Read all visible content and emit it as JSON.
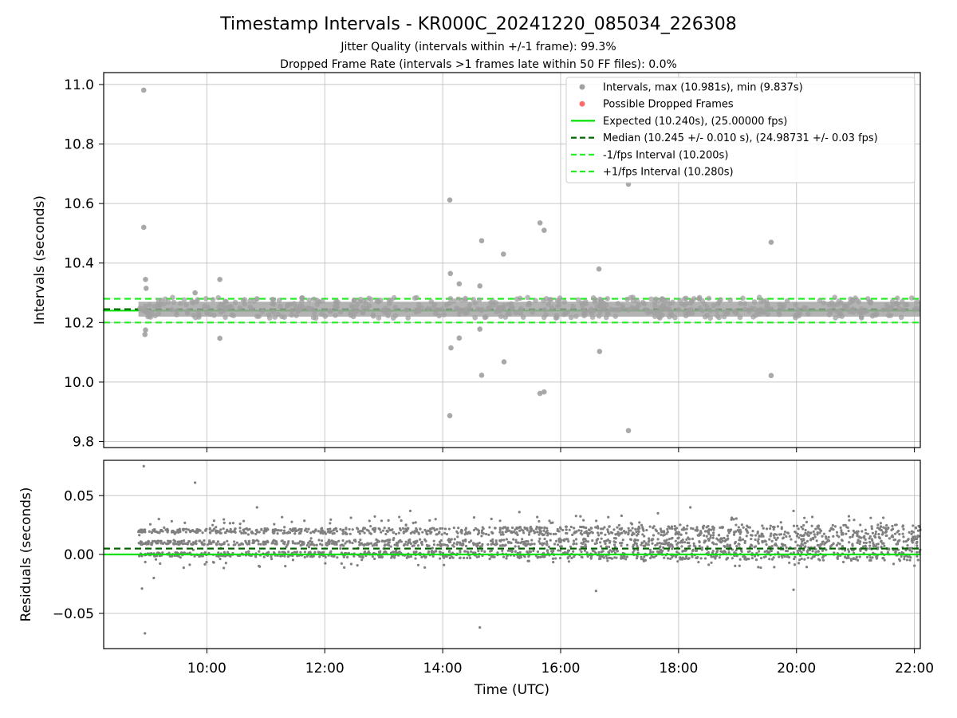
{
  "chart_data": [
    {
      "type": "scatter",
      "panel": "intervals",
      "title": "Timestamp Intervals - KR000C_20241220_085034_226308",
      "subtitle_lines": [
        "Jitter Quality (intervals within +/-1 frame): 99.3%",
        "Dropped Frame Rate (intervals >1 frames late within 50 FF files): 0.0%"
      ],
      "ylabel": "Intervals (seconds)",
      "xlim_hours": [
        8.25,
        22.1
      ],
      "ylim": [
        9.78,
        11.04
      ],
      "yticks": [
        9.8,
        10.0,
        10.2,
        10.4,
        10.6,
        10.8,
        11.0
      ],
      "ytick_labels": [
        "9.8",
        "10.0",
        "10.2",
        "10.4",
        "10.6",
        "10.8",
        "11.0"
      ],
      "grid": true,
      "legend_position": "upper-right",
      "legend": [
        "Intervals, max (10.981s), min (9.837s)",
        "Possible Dropped Frames",
        "Expected (10.240s), (25.00000 fps)",
        "Median (10.245 +/- 0.010 s), (24.98731 +/- 0.03 fps)",
        "-1/fps Interval (10.200s)",
        "+1/fps Interval (10.280s)"
      ],
      "reference_lines": {
        "expected": 10.24,
        "median": 10.245,
        "minus_one_frame": 10.2,
        "plus_one_frame": 10.28
      },
      "band": {
        "x_start": 8.84,
        "x_end": 22.1,
        "low": 10.22,
        "high": 10.27
      },
      "outliers": [
        {
          "x": 8.93,
          "y": 10.981
        },
        {
          "x": 8.93,
          "y": 10.52
        },
        {
          "x": 8.96,
          "y": 10.345
        },
        {
          "x": 8.97,
          "y": 10.315
        },
        {
          "x": 8.96,
          "y": 10.175
        },
        {
          "x": 8.95,
          "y": 10.16
        },
        {
          "x": 9.8,
          "y": 10.3
        },
        {
          "x": 10.22,
          "y": 10.345
        },
        {
          "x": 10.22,
          "y": 10.147
        },
        {
          "x": 14.12,
          "y": 10.612
        },
        {
          "x": 14.13,
          "y": 10.365
        },
        {
          "x": 14.28,
          "y": 10.33
        },
        {
          "x": 14.63,
          "y": 10.323
        },
        {
          "x": 14.66,
          "y": 10.475
        },
        {
          "x": 15.03,
          "y": 10.43
        },
        {
          "x": 15.65,
          "y": 10.535
        },
        {
          "x": 15.72,
          "y": 10.51
        },
        {
          "x": 16.65,
          "y": 10.38
        },
        {
          "x": 17.15,
          "y": 10.665
        },
        {
          "x": 19.57,
          "y": 10.47
        },
        {
          "x": 14.14,
          "y": 10.115
        },
        {
          "x": 14.28,
          "y": 10.148
        },
        {
          "x": 14.63,
          "y": 10.178
        },
        {
          "x": 14.66,
          "y": 10.023
        },
        {
          "x": 15.04,
          "y": 10.068
        },
        {
          "x": 15.65,
          "y": 9.962
        },
        {
          "x": 15.72,
          "y": 9.967
        },
        {
          "x": 16.66,
          "y": 10.103
        },
        {
          "x": 19.57,
          "y": 10.022
        },
        {
          "x": 14.12,
          "y": 9.887
        },
        {
          "x": 17.15,
          "y": 9.837
        },
        {
          "x": 18.35,
          "y": 10.28
        },
        {
          "x": 10.85,
          "y": 10.28
        },
        {
          "x": 12.5,
          "y": 10.275
        }
      ],
      "dropped_frames": []
    },
    {
      "type": "scatter",
      "panel": "residuals",
      "ylabel": "Residuals (seconds)",
      "xlabel": "Time (UTC)",
      "xlim_hours": [
        8.25,
        22.1
      ],
      "ylim": [
        -0.08,
        0.08
      ],
      "yticks": [
        -0.05,
        0.0,
        0.05
      ],
      "ytick_labels": [
        "−0.05",
        "0.00",
        "0.05"
      ],
      "xticks_hours": [
        10,
        12,
        14,
        16,
        18,
        20,
        22
      ],
      "xtick_labels": [
        "10:00",
        "12:00",
        "14:00",
        "16:00",
        "18:00",
        "20:00",
        "22:00"
      ],
      "grid": true,
      "reference_lines": {
        "zero": 0.0,
        "median_offset": 0.005
      },
      "clusters": [
        0.0,
        0.01,
        0.02
      ],
      "outliers": [
        {
          "x": 8.93,
          "y": 0.075
        },
        {
          "x": 8.95,
          "y": -0.067
        },
        {
          "x": 9.8,
          "y": 0.061
        },
        {
          "x": 8.9,
          "y": -0.029
        },
        {
          "x": 14.63,
          "y": -0.062
        },
        {
          "x": 16.6,
          "y": -0.031
        },
        {
          "x": 19.95,
          "y": -0.03
        },
        {
          "x": 18.2,
          "y": 0.04
        },
        {
          "x": 17.65,
          "y": 0.035
        },
        {
          "x": 19.95,
          "y": 0.037
        },
        {
          "x": 10.85,
          "y": 0.04
        },
        {
          "x": 13.45,
          "y": 0.037
        },
        {
          "x": 15.3,
          "y": 0.036
        },
        {
          "x": 9.1,
          "y": -0.02
        }
      ]
    }
  ],
  "colors": {
    "interval_points": "#a0a0a0",
    "residual_points": "#808080",
    "dropped": "#ff6b6b",
    "expected": "#00e000",
    "median": "#006400",
    "fps_bounds": "#22ee22",
    "grid": "#b0b0b0"
  }
}
